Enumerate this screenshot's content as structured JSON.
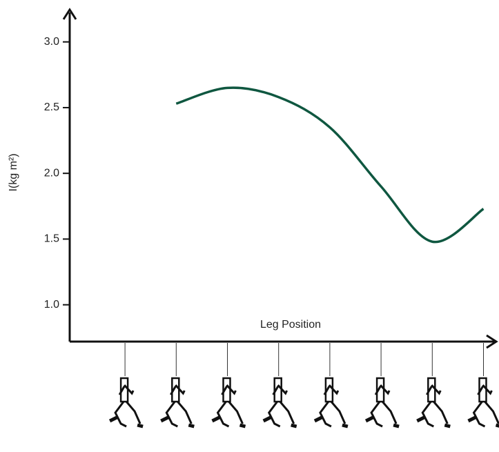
{
  "chart_data": {
    "type": "line",
    "y_label": "I(kg m²)",
    "x_label": "Leg Position",
    "categories": [
      null,
      null,
      null,
      null,
      null,
      null,
      null,
      null
    ],
    "values": [
      null,
      2.53,
      2.65,
      2.58,
      2.35,
      1.9,
      1.48,
      1.73
    ],
    "color": "#0f5740",
    "ylim": [
      0.72,
      3.24
    ],
    "yticks": [
      {
        "value": 1,
        "label": "1.0"
      },
      {
        "value": 1.5,
        "label": "1.5"
      },
      {
        "value": 2,
        "label": "2.0"
      },
      {
        "value": 2.5,
        "label": "2.5"
      },
      {
        "value": 3,
        "label": "3.0"
      }
    ]
  }
}
